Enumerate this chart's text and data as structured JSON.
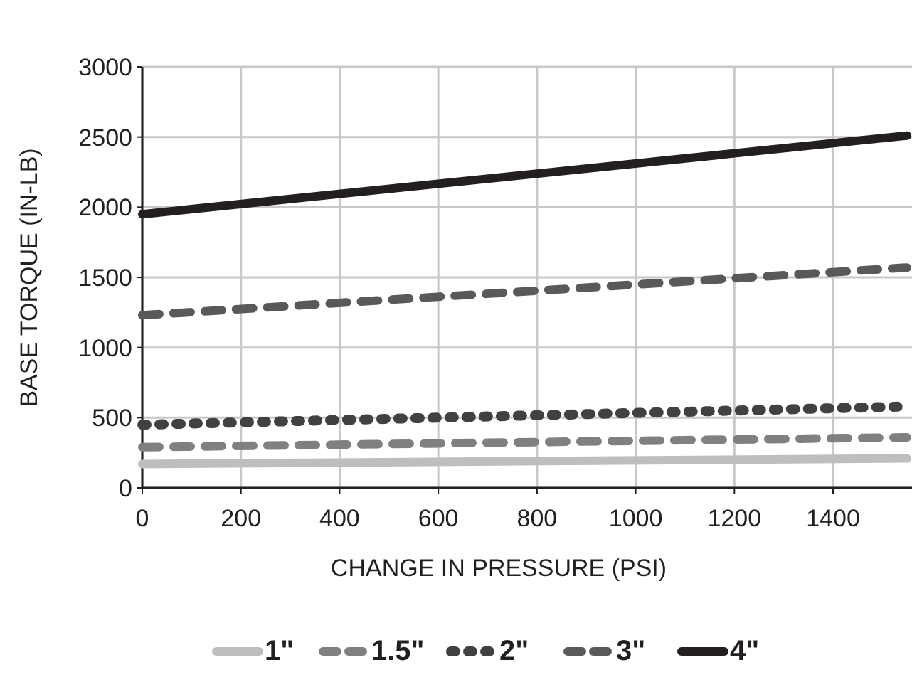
{
  "chart_data": {
    "type": "line",
    "xlabel": "CHANGE IN PRESSURE (PSI)",
    "ylabel": "BASE TORQUE (IN-LB)",
    "xlim": [
      0,
      1560
    ],
    "xticks": [
      0,
      200,
      400,
      600,
      800,
      1000,
      1200,
      1400
    ],
    "ylim": [
      0,
      3000
    ],
    "yticks": [
      0,
      500,
      1000,
      1500,
      2000,
      2500,
      3000
    ],
    "grid": true,
    "legend": "bottom",
    "x": [
      0,
      1550
    ],
    "series": [
      {
        "name": "1\"",
        "color": "#bcbec0",
        "values": [
          170,
          210
        ],
        "line_style": "solid"
      },
      {
        "name": "1.5\"",
        "color": "#808080",
        "values": [
          290,
          360
        ],
        "line_style": "dashed"
      },
      {
        "name": "2\"",
        "color": "#414042",
        "values": [
          450,
          580
        ],
        "line_style": "dotted"
      },
      {
        "name": "3\"",
        "color": "#58595b",
        "values": [
          1230,
          1570
        ],
        "line_style": "dashed"
      },
      {
        "name": "4\"",
        "color": "#231f20",
        "values": [
          1950,
          2510
        ],
        "line_style": "solid"
      }
    ]
  }
}
